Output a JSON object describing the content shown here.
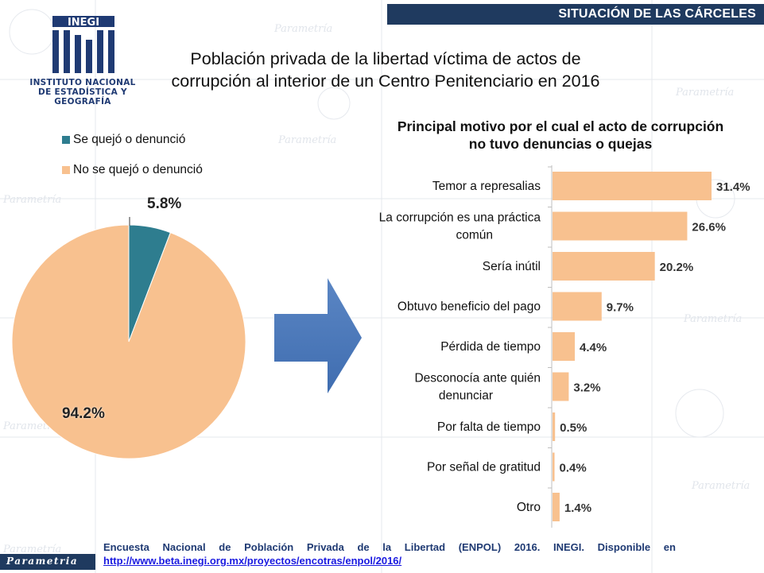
{
  "header": {
    "section_title": "SITUACIÓN DE LAS CÁRCELES"
  },
  "logo": {
    "wordmark": "INEGI",
    "line1": "INSTITUTO NACIONAL",
    "line2": "DE ESTADÍSTICA Y GEOGRAFÍA",
    "color": "#1f3a73"
  },
  "main_title": {
    "line1": "Población privada de la libertad víctima de actos de",
    "line2": "corrupción al interior de un Centro Penitenciario en 2016"
  },
  "footer": {
    "words": [
      "Encuesta",
      "Nacional",
      "de",
      "Población",
      "Privada",
      "de",
      "la",
      "Libertad",
      "(ENPOL)",
      "2016.",
      "INEGI.",
      "Disponible",
      "en"
    ],
    "link": "http://www.beta.inegi.org.mx/proyectos/encotras/enpol/2016/"
  },
  "watermark": {
    "brand": "Parametría",
    "footer_brand": "Parametria"
  },
  "chart_data": [
    {
      "type": "pie",
      "labels": [
        "Se quejó o denunció",
        "No se quejó o denunció"
      ],
      "values": [
        5.8,
        94.2
      ],
      "value_labels": [
        "5.8%",
        "94.2%"
      ],
      "colors": [
        "#2e7d8f",
        "#f8c18f"
      ],
      "legend_position": "top-left"
    },
    {
      "type": "bar",
      "orientation": "horizontal",
      "title": "Principal motivo por el cual el acto de corrupción no tuvo denuncias o quejas",
      "title_lines": [
        "Principal motivo por el cual el acto de corrupción",
        "no tuvo denuncias o quejas"
      ],
      "categories": [
        [
          "Temor a represalias"
        ],
        [
          "La corrupción es una práctica",
          "común"
        ],
        [
          "Sería inútil"
        ],
        [
          "Obtuvo beneficio del pago"
        ],
        [
          "Pérdida de tiempo"
        ],
        [
          "Desconocía ante quién",
          "denunciar"
        ],
        [
          "Por falta de tiempo"
        ],
        [
          "Por señal de gratitud"
        ],
        [
          "Otro"
        ]
      ],
      "values": [
        31.4,
        26.6,
        20.2,
        9.7,
        4.4,
        3.2,
        0.5,
        0.4,
        1.4
      ],
      "value_labels": [
        "31.4%",
        "26.6%",
        "20.2%",
        "9.7%",
        "4.4%",
        "3.2%",
        "0.5%",
        "0.4%",
        "1.4%"
      ],
      "xlim": [
        0,
        31.4
      ],
      "grid": false,
      "bar_color": "#f8c18f"
    }
  ]
}
